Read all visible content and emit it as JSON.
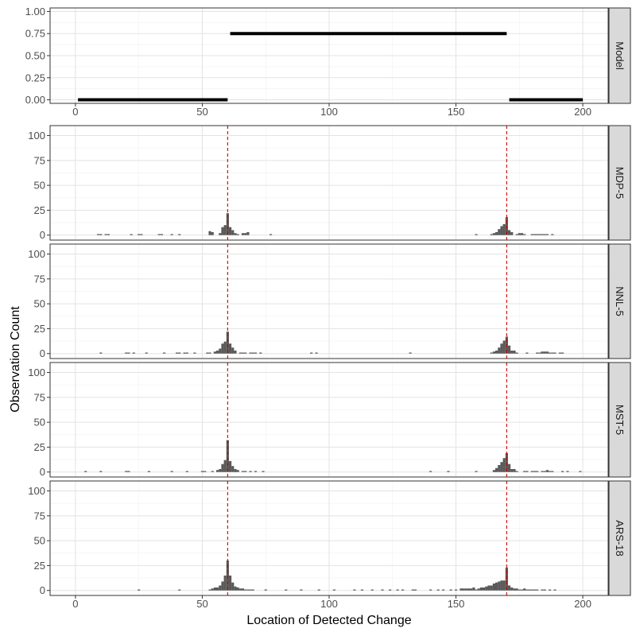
{
  "chart_data": {
    "type": "bar",
    "xlabel": "Location of Detected Change",
    "ylabel": "Observation Count",
    "xlim": [
      -10,
      210
    ],
    "x_ticks": [
      "0",
      "50",
      "100",
      "150",
      "200"
    ],
    "grid": true,
    "model_panel": {
      "name": "Model",
      "ylim": [
        -0.04,
        1.04
      ],
      "y_ticks": [
        "0.00",
        "0.25",
        "0.50",
        "0.75",
        "1.00"
      ],
      "segments": [
        {
          "x0": 1,
          "x1": 60,
          "y": 0.0
        },
        {
          "x0": 61,
          "x1": 170,
          "y": 0.75
        },
        {
          "x0": 171,
          "x1": 200,
          "y": 0.0
        }
      ]
    },
    "change_points": [
      60,
      170
    ],
    "reference_line_color": "#cc0000",
    "bar_color": "#595959",
    "count_ylim": [
      -5,
      110
    ],
    "count_y_ticks": [
      "0",
      "25",
      "50",
      "75",
      "100"
    ],
    "panels": [
      {
        "name": "MDP-5",
        "bars": [
          [
            9,
            1
          ],
          [
            10,
            1
          ],
          [
            12,
            1
          ],
          [
            13,
            1
          ],
          [
            22,
            1
          ],
          [
            25,
            1
          ],
          [
            26,
            1
          ],
          [
            33,
            1
          ],
          [
            34,
            1
          ],
          [
            38,
            1
          ],
          [
            41,
            1
          ],
          [
            53,
            4
          ],
          [
            54,
            3
          ],
          [
            57,
            2
          ],
          [
            58,
            8
          ],
          [
            59,
            10
          ],
          [
            60,
            22
          ],
          [
            61,
            8
          ],
          [
            62,
            5
          ],
          [
            63,
            2
          ],
          [
            64,
            1
          ],
          [
            66,
            2
          ],
          [
            67,
            2
          ],
          [
            68,
            3
          ],
          [
            77,
            1
          ],
          [
            158,
            1
          ],
          [
            164,
            1
          ],
          [
            165,
            2
          ],
          [
            166,
            3
          ],
          [
            167,
            6
          ],
          [
            168,
            9
          ],
          [
            169,
            11
          ],
          [
            170,
            18
          ],
          [
            171,
            5
          ],
          [
            172,
            3
          ],
          [
            174,
            1
          ],
          [
            175,
            2
          ],
          [
            176,
            2
          ],
          [
            177,
            1
          ],
          [
            180,
            1
          ],
          [
            181,
            1
          ],
          [
            182,
            1
          ],
          [
            183,
            1
          ],
          [
            184,
            1
          ],
          [
            185,
            1
          ],
          [
            186,
            1
          ],
          [
            188,
            1
          ]
        ]
      },
      {
        "name": "NNL-5",
        "bars": [
          [
            10,
            1
          ],
          [
            20,
            1
          ],
          [
            21,
            1
          ],
          [
            23,
            1
          ],
          [
            28,
            1
          ],
          [
            35,
            1
          ],
          [
            40,
            1
          ],
          [
            41,
            1
          ],
          [
            43,
            1
          ],
          [
            44,
            1
          ],
          [
            47,
            1
          ],
          [
            52,
            1
          ],
          [
            53,
            1
          ],
          [
            55,
            2
          ],
          [
            56,
            3
          ],
          [
            57,
            5
          ],
          [
            58,
            10
          ],
          [
            59,
            12
          ],
          [
            60,
            22
          ],
          [
            61,
            10
          ],
          [
            62,
            6
          ],
          [
            63,
            3
          ],
          [
            65,
            1
          ],
          [
            66,
            1
          ],
          [
            67,
            1
          ],
          [
            69,
            1
          ],
          [
            70,
            1
          ],
          [
            71,
            1
          ],
          [
            73,
            1
          ],
          [
            93,
            1
          ],
          [
            95,
            1
          ],
          [
            132,
            1
          ],
          [
            164,
            1
          ],
          [
            165,
            2
          ],
          [
            166,
            3
          ],
          [
            167,
            6
          ],
          [
            168,
            10
          ],
          [
            169,
            13
          ],
          [
            170,
            17
          ],
          [
            171,
            8
          ],
          [
            172,
            3
          ],
          [
            173,
            3
          ],
          [
            174,
            1
          ],
          [
            178,
            1
          ],
          [
            182,
            1
          ],
          [
            183,
            1
          ],
          [
            184,
            2
          ],
          [
            185,
            2
          ],
          [
            186,
            2
          ],
          [
            187,
            1
          ],
          [
            188,
            1
          ],
          [
            189,
            1
          ],
          [
            191,
            1
          ],
          [
            192,
            1
          ]
        ]
      },
      {
        "name": "MST-5",
        "bars": [
          [
            4,
            1
          ],
          [
            10,
            1
          ],
          [
            20,
            1
          ],
          [
            21,
            1
          ],
          [
            29,
            1
          ],
          [
            38,
            1
          ],
          [
            44,
            1
          ],
          [
            50,
            1
          ],
          [
            51,
            1
          ],
          [
            54,
            1
          ],
          [
            56,
            2
          ],
          [
            57,
            3
          ],
          [
            58,
            8
          ],
          [
            59,
            12
          ],
          [
            60,
            32
          ],
          [
            61,
            11
          ],
          [
            62,
            6
          ],
          [
            63,
            3
          ],
          [
            64,
            2
          ],
          [
            66,
            1
          ],
          [
            67,
            1
          ],
          [
            69,
            1
          ],
          [
            71,
            1
          ],
          [
            74,
            1
          ],
          [
            140,
            1
          ],
          [
            147,
            1
          ],
          [
            158,
            1
          ],
          [
            165,
            2
          ],
          [
            166,
            4
          ],
          [
            167,
            7
          ],
          [
            168,
            10
          ],
          [
            169,
            14
          ],
          [
            170,
            19
          ],
          [
            171,
            8
          ],
          [
            172,
            3
          ],
          [
            173,
            3
          ],
          [
            174,
            1
          ],
          [
            177,
            1
          ],
          [
            178,
            1
          ],
          [
            180,
            1
          ],
          [
            181,
            1
          ],
          [
            182,
            1
          ],
          [
            184,
            1
          ],
          [
            185,
            1
          ],
          [
            186,
            2
          ],
          [
            187,
            1
          ],
          [
            188,
            1
          ],
          [
            192,
            1
          ],
          [
            194,
            1
          ],
          [
            199,
            1
          ]
        ]
      },
      {
        "name": "ARS-18",
        "bars": [
          [
            25,
            1
          ],
          [
            41,
            1
          ],
          [
            53,
            1
          ],
          [
            54,
            2
          ],
          [
            55,
            3
          ],
          [
            56,
            3
          ],
          [
            57,
            5
          ],
          [
            58,
            9
          ],
          [
            59,
            15
          ],
          [
            60,
            30
          ],
          [
            61,
            15
          ],
          [
            62,
            8
          ],
          [
            63,
            4
          ],
          [
            64,
            3
          ],
          [
            65,
            2
          ],
          [
            66,
            2
          ],
          [
            67,
            1
          ],
          [
            68,
            1
          ],
          [
            69,
            1
          ],
          [
            70,
            1
          ],
          [
            75,
            1
          ],
          [
            83,
            1
          ],
          [
            89,
            1
          ],
          [
            96,
            1
          ],
          [
            102,
            1
          ],
          [
            110,
            1
          ],
          [
            113,
            1
          ],
          [
            117,
            1
          ],
          [
            121,
            1
          ],
          [
            124,
            1
          ],
          [
            127,
            1
          ],
          [
            129,
            1
          ],
          [
            133,
            1
          ],
          [
            134,
            1
          ],
          [
            140,
            1
          ],
          [
            143,
            1
          ],
          [
            145,
            1
          ],
          [
            148,
            1
          ],
          [
            150,
            1
          ],
          [
            152,
            2
          ],
          [
            153,
            2
          ],
          [
            154,
            2
          ],
          [
            155,
            2
          ],
          [
            156,
            2
          ],
          [
            157,
            3
          ],
          [
            158,
            1
          ],
          [
            159,
            2
          ],
          [
            160,
            3
          ],
          [
            161,
            3
          ],
          [
            162,
            4
          ],
          [
            163,
            5
          ],
          [
            164,
            5
          ],
          [
            165,
            7
          ],
          [
            166,
            8
          ],
          [
            167,
            9
          ],
          [
            168,
            10
          ],
          [
            169,
            10
          ],
          [
            170,
            23
          ],
          [
            171,
            5
          ],
          [
            172,
            3
          ],
          [
            173,
            2
          ],
          [
            174,
            2
          ],
          [
            175,
            1
          ],
          [
            176,
            1
          ],
          [
            177,
            2
          ],
          [
            178,
            1
          ],
          [
            179,
            1
          ],
          [
            180,
            1
          ],
          [
            181,
            1
          ],
          [
            182,
            1
          ],
          [
            184,
            1
          ],
          [
            185,
            1
          ],
          [
            187,
            1
          ],
          [
            189,
            1
          ]
        ]
      }
    ]
  }
}
